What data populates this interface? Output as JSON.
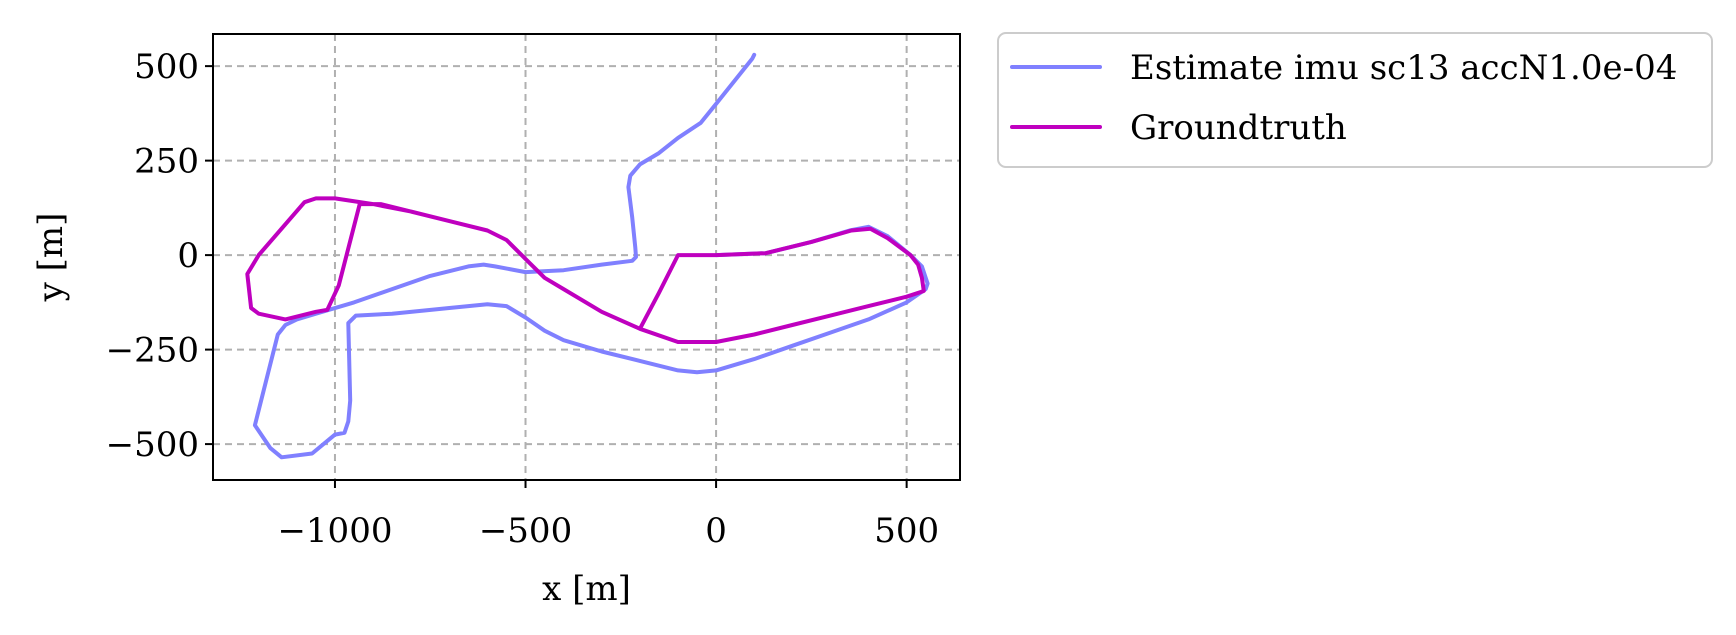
{
  "chart_data": {
    "type": "line",
    "title": "",
    "xlabel": "x [m]",
    "ylabel": "y [m]",
    "xlim": [
      -1320,
      640
    ],
    "ylim": [
      -595,
      585
    ],
    "xticks": [
      -1000,
      -500,
      0,
      500
    ],
    "yticks": [
      -500,
      -250,
      0,
      250,
      500
    ],
    "xtick_labels": [
      "−1000",
      "−500",
      "0",
      "500"
    ],
    "ytick_labels": [
      "−500",
      "−250",
      "0",
      "250",
      "500"
    ],
    "grid": true,
    "grid_style": "dashed",
    "legend_position": "outside-top-right",
    "series": [
      {
        "name": "Estimate imu sc13 accN1.0e-04",
        "color": "#8080ff",
        "points": [
          [
            100,
            530
          ],
          [
            95,
            520
          ],
          [
            0,
            400
          ],
          [
            -40,
            350
          ],
          [
            -100,
            310
          ],
          [
            -150,
            270
          ],
          [
            -200,
            240
          ],
          [
            -225,
            210
          ],
          [
            -230,
            180
          ],
          [
            -220,
            100
          ],
          [
            -212,
            20
          ],
          [
            -210,
            -5
          ],
          [
            -220,
            -15
          ],
          [
            -300,
            -25
          ],
          [
            -400,
            -40
          ],
          [
            -500,
            -45
          ],
          [
            -580,
            -30
          ],
          [
            -610,
            -25
          ],
          [
            -650,
            -30
          ],
          [
            -750,
            -55
          ],
          [
            -850,
            -90
          ],
          [
            -950,
            -125
          ],
          [
            -1050,
            -155
          ],
          [
            -1100,
            -170
          ],
          [
            -1130,
            -185
          ],
          [
            -1150,
            -210
          ],
          [
            -1210,
            -450
          ],
          [
            -1170,
            -510
          ],
          [
            -1140,
            -535
          ],
          [
            -1060,
            -525
          ],
          [
            -1000,
            -475
          ],
          [
            -975,
            -470
          ],
          [
            -965,
            -440
          ],
          [
            -960,
            -385
          ],
          [
            -965,
            -180
          ],
          [
            -945,
            -160
          ],
          [
            -850,
            -155
          ],
          [
            -700,
            -140
          ],
          [
            -600,
            -130
          ],
          [
            -550,
            -135
          ],
          [
            -500,
            -165
          ],
          [
            -450,
            -200
          ],
          [
            -400,
            -225
          ],
          [
            -300,
            -255
          ],
          [
            -200,
            -280
          ],
          [
            -100,
            -305
          ],
          [
            -50,
            -310
          ],
          [
            0,
            -305
          ],
          [
            100,
            -275
          ],
          [
            200,
            -240
          ],
          [
            300,
            -205
          ],
          [
            400,
            -170
          ],
          [
            500,
            -125
          ],
          [
            550,
            -90
          ],
          [
            555,
            -75
          ],
          [
            540,
            -30
          ],
          [
            510,
            0
          ],
          [
            450,
            50
          ],
          [
            400,
            75
          ],
          [
            350,
            65
          ],
          [
            250,
            35
          ],
          [
            130,
            5
          ],
          [
            0,
            0
          ]
        ]
      },
      {
        "name": "Groundtruth",
        "color": "#bf00bf",
        "points": [
          [
            0,
            0
          ],
          [
            130,
            5
          ],
          [
            250,
            35
          ],
          [
            355,
            65
          ],
          [
            405,
            70
          ],
          [
            450,
            45
          ],
          [
            510,
            0
          ],
          [
            530,
            -25
          ],
          [
            540,
            -60
          ],
          [
            545,
            -95
          ],
          [
            500,
            -110
          ],
          [
            400,
            -135
          ],
          [
            300,
            -160
          ],
          [
            200,
            -185
          ],
          [
            100,
            -210
          ],
          [
            0,
            -230
          ],
          [
            -100,
            -230
          ],
          [
            -200,
            -195
          ],
          [
            -300,
            -150
          ],
          [
            -400,
            -90
          ],
          [
            -450,
            -60
          ],
          [
            -500,
            -10
          ],
          [
            -550,
            40
          ],
          [
            -600,
            65
          ],
          [
            -700,
            90
          ],
          [
            -800,
            115
          ],
          [
            -900,
            135
          ],
          [
            -1000,
            150
          ],
          [
            -1050,
            150
          ],
          [
            -1080,
            140
          ],
          [
            -1200,
            0
          ],
          [
            -1230,
            -50
          ],
          [
            -1220,
            -140
          ],
          [
            -1200,
            -155
          ],
          [
            -1130,
            -170
          ],
          [
            -1050,
            -150
          ],
          [
            -1020,
            -145
          ],
          [
            -990,
            -80
          ],
          [
            -935,
            135
          ],
          [
            -880,
            135
          ],
          [
            -700,
            90
          ],
          [
            -600,
            65
          ],
          [
            -550,
            40
          ],
          [
            -500,
            -10
          ],
          [
            -450,
            -60
          ],
          [
            -400,
            -90
          ],
          [
            -300,
            -150
          ],
          [
            -200,
            -195
          ],
          [
            -150,
            -100
          ],
          [
            -100,
            0
          ],
          [
            0,
            0
          ]
        ]
      }
    ]
  }
}
